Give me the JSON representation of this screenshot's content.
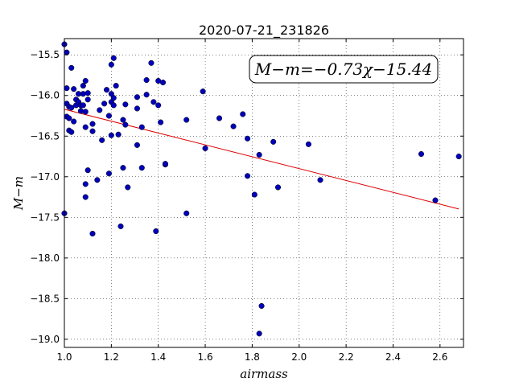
{
  "chart_data": {
    "type": "scatter",
    "title": "2020-07-21_231826",
    "xlabel": "airmass",
    "ylabel": "M−m",
    "xlim": [
      1.0,
      2.7
    ],
    "ylim": [
      -19.1,
      -15.3
    ],
    "x_ticks": [
      1.0,
      1.2,
      1.4,
      1.6,
      1.8,
      2.0,
      2.2,
      2.4,
      2.6
    ],
    "x_tick_labels": [
      "1.0",
      "1.2",
      "1.4",
      "1.6",
      "1.8",
      "2.0",
      "2.2",
      "2.4",
      "2.6"
    ],
    "y_ticks": [
      -15.5,
      -16.0,
      -16.5,
      -17.0,
      -17.5,
      -18.0,
      -18.5,
      -19.0
    ],
    "y_tick_labels": [
      "−15.5",
      "−16.0",
      "−16.5",
      "−17.0",
      "−17.5",
      "−18.0",
      "−18.5",
      "−19.0"
    ],
    "grid": true,
    "annotation": "M−m=−0.73χ−15.44",
    "fit_line": {
      "slope": -0.73,
      "intercept": -15.44,
      "x_range": [
        1.0,
        2.68
      ],
      "color": "#dd0000"
    },
    "point_color": "#0000bb",
    "points": [
      [
        1.0,
        -15.37
      ],
      [
        1.0,
        -17.45
      ],
      [
        1.01,
        -15.47
      ],
      [
        1.01,
        -15.91
      ],
      [
        1.01,
        -16.1
      ],
      [
        1.01,
        -16.26
      ],
      [
        1.02,
        -16.14
      ],
      [
        1.02,
        -16.28
      ],
      [
        1.02,
        -16.43
      ],
      [
        1.03,
        -15.66
      ],
      [
        1.03,
        -16.15
      ],
      [
        1.03,
        -16.45
      ],
      [
        1.04,
        -15.92
      ],
      [
        1.04,
        -16.32
      ],
      [
        1.05,
        -16.12
      ],
      [
        1.05,
        -16.05
      ],
      [
        1.06,
        -15.98
      ],
      [
        1.06,
        -16.08
      ],
      [
        1.07,
        -16.19
      ],
      [
        1.07,
        -16.12
      ],
      [
        1.08,
        -15.88
      ],
      [
        1.08,
        -15.98
      ],
      [
        1.08,
        -16.12
      ],
      [
        1.09,
        -15.82
      ],
      [
        1.09,
        -16.2
      ],
      [
        1.09,
        -16.39
      ],
      [
        1.09,
        -17.09
      ],
      [
        1.09,
        -17.25
      ],
      [
        1.1,
        -15.97
      ],
      [
        1.1,
        -16.05
      ],
      [
        1.1,
        -16.92
      ],
      [
        1.12,
        -16.35
      ],
      [
        1.12,
        -16.44
      ],
      [
        1.12,
        -17.7
      ],
      [
        1.14,
        -17.04
      ],
      [
        1.15,
        -16.18
      ],
      [
        1.16,
        -16.55
      ],
      [
        1.17,
        -16.1
      ],
      [
        1.18,
        -15.93
      ],
      [
        1.19,
        -16.25
      ],
      [
        1.19,
        -16.96
      ],
      [
        1.2,
        -15.62
      ],
      [
        1.2,
        -15.98
      ],
      [
        1.2,
        -16.08
      ],
      [
        1.2,
        -16.49
      ],
      [
        1.21,
        -15.54
      ],
      [
        1.21,
        -16.03
      ],
      [
        1.21,
        -16.12
      ],
      [
        1.22,
        -15.88
      ],
      [
        1.23,
        -16.48
      ],
      [
        1.24,
        -17.61
      ],
      [
        1.25,
        -16.89
      ],
      [
        1.25,
        -16.3
      ],
      [
        1.26,
        -16.36
      ],
      [
        1.26,
        -16.11
      ],
      [
        1.27,
        -17.13
      ],
      [
        1.31,
        -16.16
      ],
      [
        1.31,
        -16.02
      ],
      [
        1.31,
        -16.61
      ],
      [
        1.33,
        -16.39
      ],
      [
        1.33,
        -16.89
      ],
      [
        1.35,
        -15.99
      ],
      [
        1.35,
        -15.81
      ],
      [
        1.37,
        -15.6
      ],
      [
        1.38,
        -16.08
      ],
      [
        1.39,
        -17.67
      ],
      [
        1.4,
        -16.12
      ],
      [
        1.4,
        -15.82
      ],
      [
        1.41,
        -16.33
      ],
      [
        1.42,
        -15.84
      ],
      [
        1.43,
        -16.85
      ],
      [
        1.43,
        -16.84
      ],
      [
        1.52,
        -16.3
      ],
      [
        1.52,
        -17.45
      ],
      [
        1.59,
        -15.95
      ],
      [
        1.6,
        -16.65
      ],
      [
        1.66,
        -16.28
      ],
      [
        1.72,
        -16.38
      ],
      [
        1.76,
        -16.23
      ],
      [
        1.78,
        -16.53
      ],
      [
        1.78,
        -16.99
      ],
      [
        1.81,
        -17.22
      ],
      [
        1.83,
        -16.73
      ],
      [
        1.83,
        -18.93
      ],
      [
        1.84,
        -18.59
      ],
      [
        1.89,
        -16.57
      ],
      [
        1.91,
        -17.13
      ],
      [
        2.04,
        -16.6
      ],
      [
        2.09,
        -17.04
      ],
      [
        2.52,
        -16.72
      ],
      [
        2.58,
        -17.29
      ],
      [
        2.68,
        -16.75
      ]
    ]
  }
}
